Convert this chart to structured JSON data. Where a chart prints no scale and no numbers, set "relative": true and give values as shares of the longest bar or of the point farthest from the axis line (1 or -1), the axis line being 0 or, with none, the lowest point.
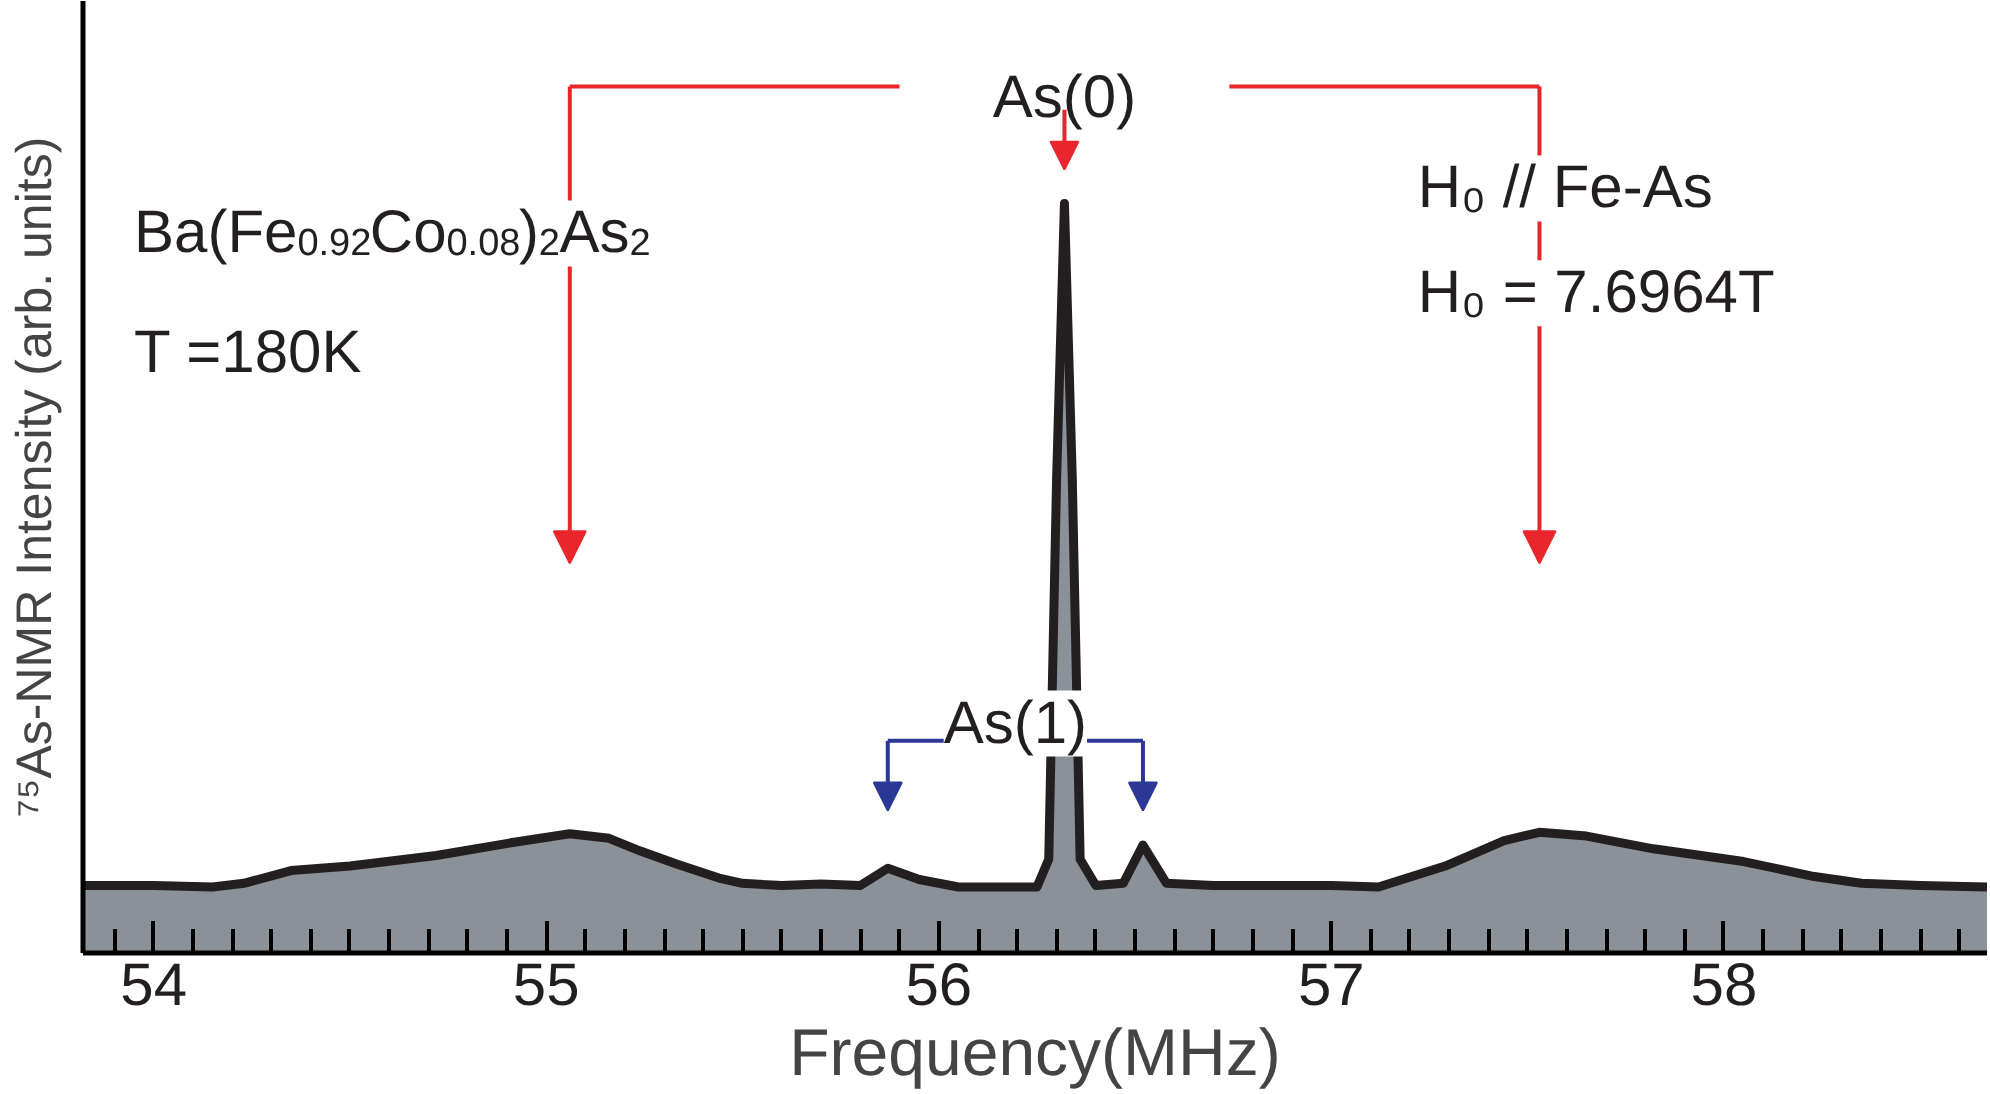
{
  "chart_data": {
    "type": "area",
    "relative": true,
    "xlabel": "Frequency(MHz)",
    "ylabel": "⁷⁵As-NMR Intensity (arb. units)",
    "xlim": [
      53.82,
      58.67
    ],
    "xticks": [
      54,
      55,
      56,
      57,
      58
    ],
    "x": [
      53.82,
      54.0,
      54.15,
      54.23,
      54.35,
      54.5,
      54.72,
      54.91,
      55.06,
      55.16,
      55.24,
      55.33,
      55.44,
      55.5,
      55.6,
      55.7,
      55.8,
      55.87,
      55.95,
      56.05,
      56.15,
      56.25,
      56.28,
      56.3,
      56.32,
      56.34,
      56.36,
      56.4,
      56.47,
      56.52,
      56.58,
      56.7,
      56.85,
      57.0,
      57.12,
      57.29,
      57.44,
      57.53,
      57.65,
      57.82,
      58.05,
      58.23,
      58.35,
      58.5,
      58.67
    ],
    "series": [
      {
        "color": "#231f20",
        "values": [
          0.09,
          0.09,
          0.088,
          0.093,
          0.11,
          0.116,
          0.13,
          0.147,
          0.159,
          0.153,
          0.136,
          0.119,
          0.1,
          0.093,
          0.09,
          0.092,
          0.09,
          0.113,
          0.098,
          0.088,
          0.088,
          0.088,
          0.125,
          0.632,
          1.0,
          0.632,
          0.125,
          0.09,
          0.093,
          0.144,
          0.093,
          0.09,
          0.09,
          0.09,
          0.088,
          0.116,
          0.15,
          0.161,
          0.156,
          0.139,
          0.122,
          0.102,
          0.093,
          0.09,
          0.088
        ]
      }
    ],
    "annotations": [
      {
        "text": "As(0)",
        "x": 56.32,
        "y": 1.0
      },
      "As(1)",
      "Ba(Fe$_{0.92}$Co$_{0.08}$)$_{2}$As$_{2}$",
      "T =180K",
      "H₀ // Fe-As",
      "H₀ = 7.6964T"
    ],
    "grid": false
  }
}
